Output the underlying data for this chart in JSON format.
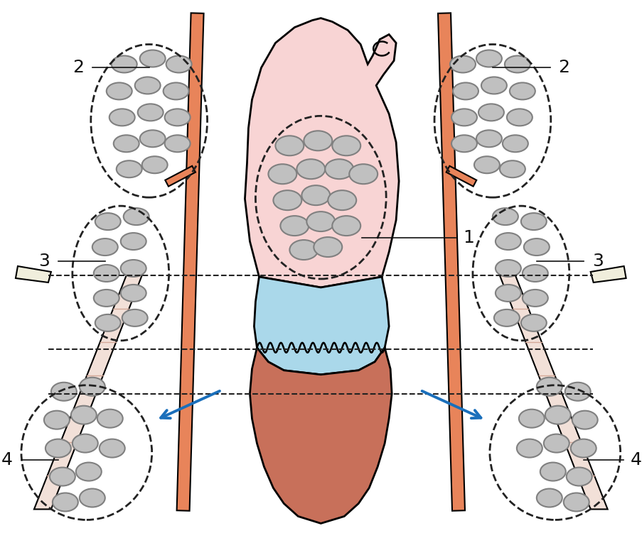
{
  "bg_color": "#ffffff",
  "organ_pink": "#f8d4d4",
  "organ_brown": "#c8705a",
  "organ_blue": "#aad8ea",
  "vessel_color": "#e8845a",
  "node_fill": "#c0c0c0",
  "node_outline": "#808080",
  "muscle_fill": "#f2e0d8",
  "muscle_line": "#d4a898",
  "bone_fill": "#f0eedc",
  "dashed_color": "#222222",
  "arrow_color": "#1a6fbb",
  "label_color": "#111111",
  "label_fontsize": 18
}
